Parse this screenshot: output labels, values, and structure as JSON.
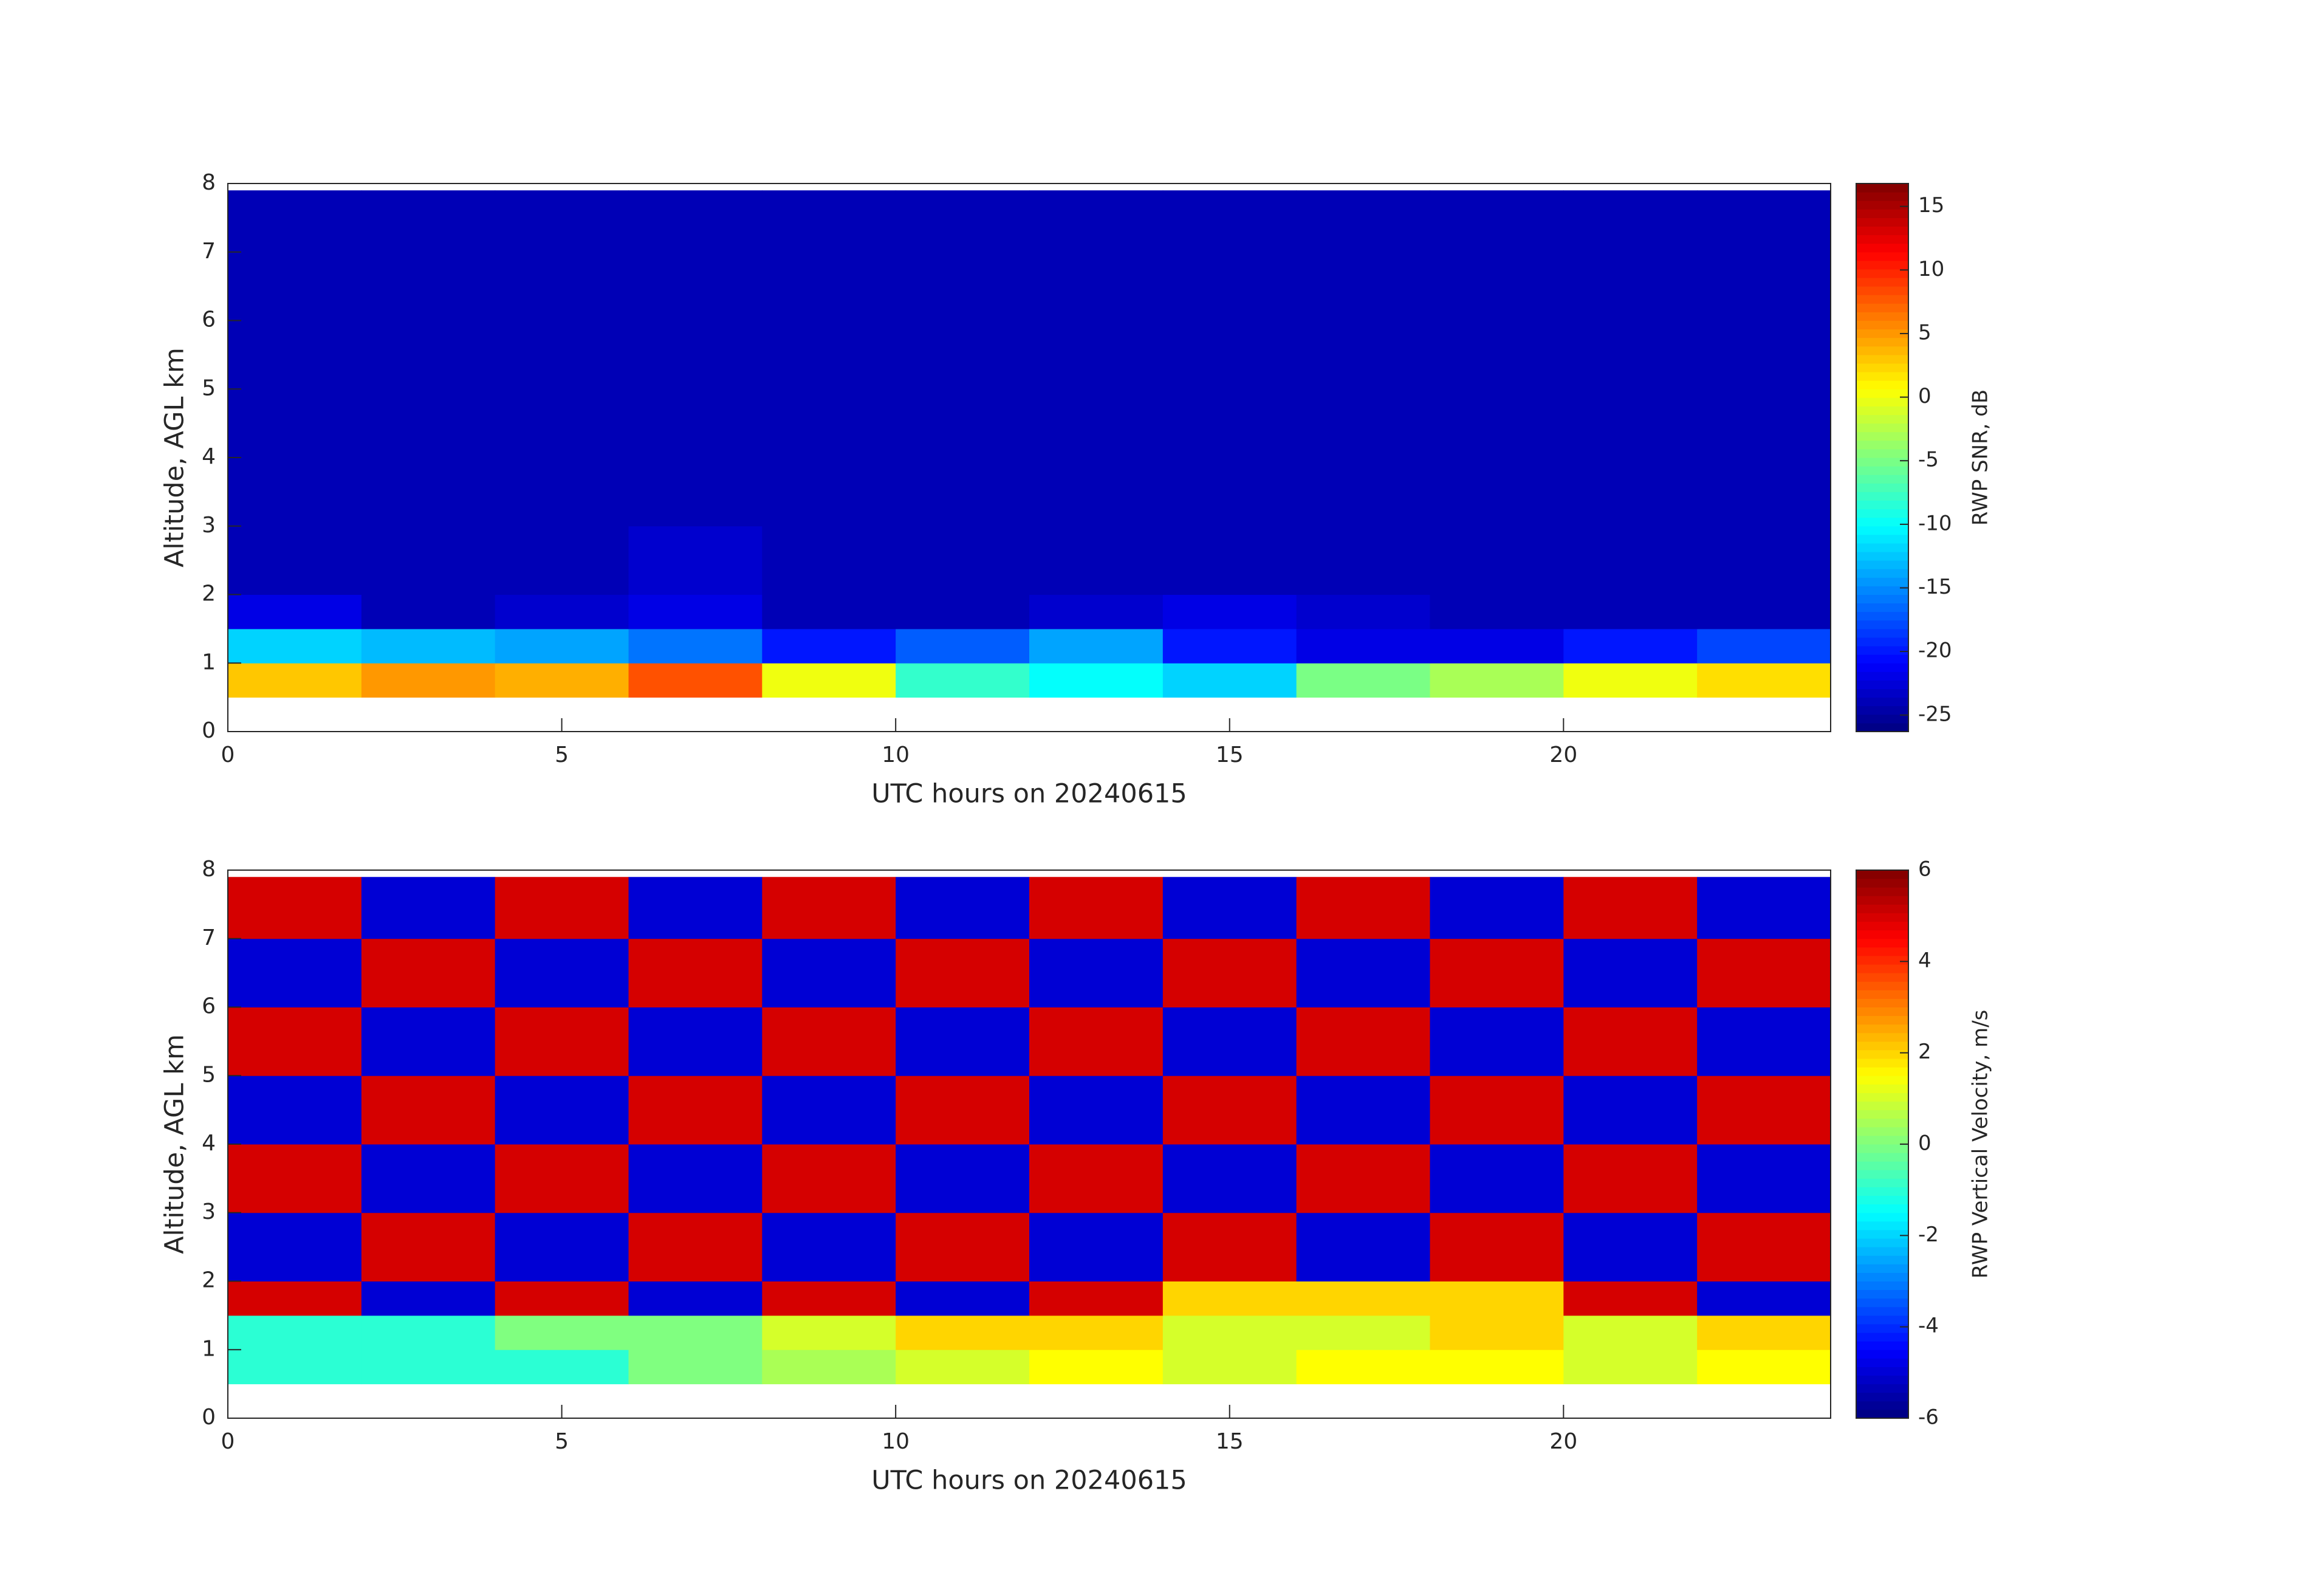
{
  "chart_data": [
    {
      "type": "heatmap",
      "xlabel": "UTC hours on 20240615",
      "ylabel": "Altitude, AGL km",
      "xlim": [
        0,
        24
      ],
      "xticks": [
        0,
        5,
        10,
        15,
        20
      ],
      "ylim": [
        0,
        8
      ],
      "yticks": [
        0,
        1,
        2,
        3,
        4,
        5,
        6,
        7,
        8
      ],
      "xbins": [
        0,
        2,
        4,
        6,
        8,
        10,
        12,
        14,
        16,
        18,
        20,
        22,
        24
      ],
      "ybins": [
        0.5,
        1,
        1.5,
        2,
        3,
        4,
        5,
        6,
        7,
        7.9
      ],
      "values": [
        [
          3,
          5,
          4,
          8,
          0,
          -8,
          -10,
          -12,
          -5,
          -3,
          0,
          2
        ],
        [
          -12,
          -13,
          -14,
          -16,
          -20,
          -17,
          -14,
          -20,
          -22,
          -22,
          -20,
          -18
        ],
        [
          -22,
          -24,
          -23,
          -22,
          -24,
          -24,
          -23,
          -22,
          -23,
          -24,
          -24,
          -24
        ],
        [
          -24,
          -24,
          -24,
          -23,
          -24,
          -24,
          -24,
          -24,
          -24,
          -24,
          -24,
          -24
        ],
        [
          -24,
          -24,
          -24,
          -24,
          -24,
          -24,
          -24,
          -24,
          -24,
          -24,
          -24,
          -24
        ],
        [
          -24,
          -24,
          -24,
          -24,
          -24,
          -24,
          -24,
          -24,
          -24,
          -24,
          -24,
          -24
        ],
        [
          -24,
          -24,
          -24,
          -24,
          -24,
          -24,
          -24,
          -24,
          -24,
          -24,
          -24,
          -24
        ],
        [
          -24,
          -24,
          -24,
          -24,
          -24,
          -24,
          -24,
          -24,
          -24,
          -24,
          -24,
          -24
        ],
        [
          -24,
          -24,
          -24,
          -24,
          -24,
          -24,
          -24,
          -24,
          -24,
          -24,
          -24,
          -24
        ]
      ],
      "colorbar": {
        "label": "RWP SNR, dB",
        "clim": [
          -26.3,
          16.8
        ],
        "ticks": [
          -25,
          -20,
          -15,
          -10,
          -5,
          0,
          5,
          10,
          15
        ]
      }
    },
    {
      "type": "heatmap",
      "xlabel": "UTC hours on 20240615",
      "ylabel": "Altitude, AGL km",
      "xlim": [
        0,
        24
      ],
      "xticks": [
        0,
        5,
        10,
        15,
        20
      ],
      "ylim": [
        0,
        8
      ],
      "yticks": [
        0,
        1,
        2,
        3,
        4,
        5,
        6,
        7,
        8
      ],
      "xbins": [
        0,
        2,
        4,
        6,
        8,
        10,
        12,
        14,
        16,
        18,
        20,
        22,
        24
      ],
      "ybins": [
        0.5,
        1,
        1.5,
        2,
        3,
        4,
        5,
        6,
        7,
        7.9
      ],
      "values": [
        [
          -1,
          -1,
          -1,
          0,
          0.5,
          1,
          1.5,
          1,
          1.5,
          1.5,
          1,
          1.5
        ],
        [
          -1,
          -1,
          0,
          0,
          1,
          2,
          2,
          1,
          1,
          2,
          1,
          2
        ],
        [
          5,
          -5,
          5,
          -5,
          5,
          -5,
          5,
          2,
          2,
          2,
          5,
          -5
        ],
        [
          -5,
          5,
          -5,
          5,
          -5,
          5,
          -5,
          5,
          -5,
          5,
          -5,
          5
        ],
        [
          5,
          -5,
          5,
          -5,
          5,
          -5,
          5,
          -5,
          5,
          -5,
          5,
          -5
        ],
        [
          -5,
          5,
          -5,
          5,
          -5,
          5,
          -5,
          5,
          -5,
          5,
          -5,
          5
        ],
        [
          5,
          -5,
          5,
          -5,
          5,
          -5,
          5,
          -5,
          5,
          -5,
          5,
          -5
        ],
        [
          -5,
          5,
          -5,
          5,
          -5,
          5,
          -5,
          5,
          -5,
          5,
          -5,
          5
        ],
        [
          5,
          -5,
          5,
          -5,
          5,
          -5,
          5,
          -5,
          5,
          -5,
          5,
          -5
        ]
      ],
      "colorbar": {
        "label": "RWP Vertical Velocity, m/s",
        "clim": [
          -6,
          6
        ],
        "ticks": [
          -6,
          -4,
          -2,
          0,
          2,
          4,
          6
        ]
      }
    }
  ]
}
